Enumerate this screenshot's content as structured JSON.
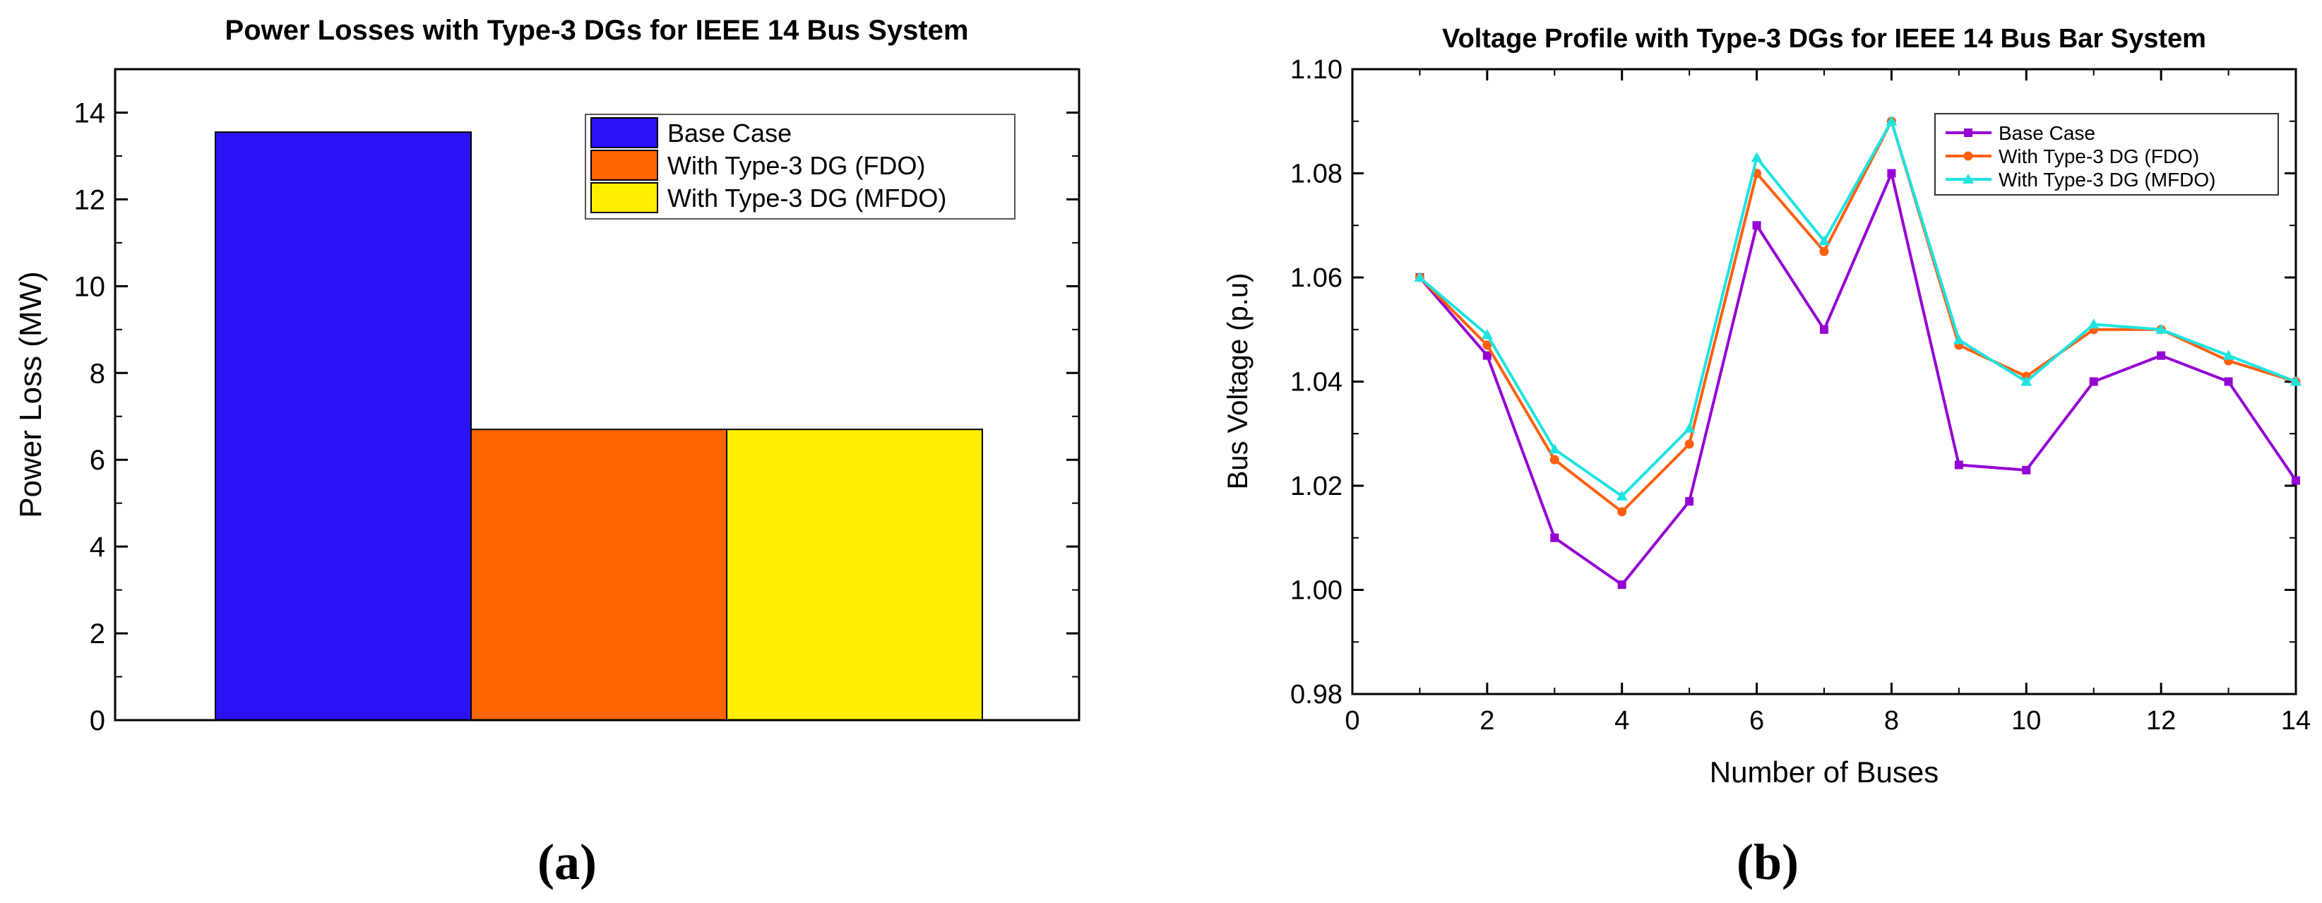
{
  "chart_data": [
    {
      "type": "bar",
      "panel_label": "(a)",
      "title": "Power Losses with Type-3 DGs for IEEE 14 Bus System",
      "xlabel": "",
      "ylabel": "Power Loss (MW)",
      "ylim": [
        0,
        15
      ],
      "yticks": [
        "0",
        "2",
        "4",
        "6",
        "8",
        "10",
        "12",
        "14"
      ],
      "legend_position": "top-right",
      "series": [
        {
          "name": "Base Case",
          "value": 13.55,
          "color": "#2b12f5"
        },
        {
          "name": "With Type-3 DG (FDO)",
          "value": 6.7,
          "color": "#ff6600"
        },
        {
          "name": "With Type-3 DG (MFDO)",
          "value": 6.7,
          "color": "#ffee00"
        }
      ]
    },
    {
      "type": "line",
      "panel_label": "(b)",
      "title": "Voltage Profile with Type-3 DGs for IEEE 14 Bus Bar System",
      "xlabel": "Number of Buses",
      "ylabel": "Bus Voltage (p.u)",
      "xlim": [
        0,
        14
      ],
      "ylim": [
        0.98,
        1.1
      ],
      "xticks": [
        "0",
        "2",
        "4",
        "6",
        "8",
        "10",
        "12",
        "14"
      ],
      "yticks": [
        "0.98",
        "1.00",
        "1.02",
        "1.04",
        "1.06",
        "1.08",
        "1.10"
      ],
      "legend_position": "top-right",
      "x": [
        1,
        2,
        3,
        4,
        5,
        6,
        7,
        8,
        9,
        10,
        11,
        12,
        13,
        14
      ],
      "series": [
        {
          "name": "Base Case",
          "color": "#9400d3",
          "marker": "square",
          "values": [
            1.06,
            1.045,
            1.01,
            1.001,
            1.017,
            1.07,
            1.05,
            1.08,
            1.024,
            1.023,
            1.04,
            1.045,
            1.04,
            1.021
          ]
        },
        {
          "name": "With Type-3 DG (FDO)",
          "color": "#ff5f0f",
          "marker": "circle",
          "values": [
            1.06,
            1.047,
            1.025,
            1.015,
            1.028,
            1.08,
            1.065,
            1.09,
            1.047,
            1.041,
            1.05,
            1.05,
            1.044,
            1.04
          ]
        },
        {
          "name": "With Type-3 DG (MFDO)",
          "color": "#1ee3e0",
          "marker": "triangle",
          "values": [
            1.06,
            1.049,
            1.027,
            1.018,
            1.031,
            1.083,
            1.067,
            1.09,
            1.048,
            1.04,
            1.051,
            1.05,
            1.045,
            1.04
          ]
        }
      ]
    }
  ]
}
